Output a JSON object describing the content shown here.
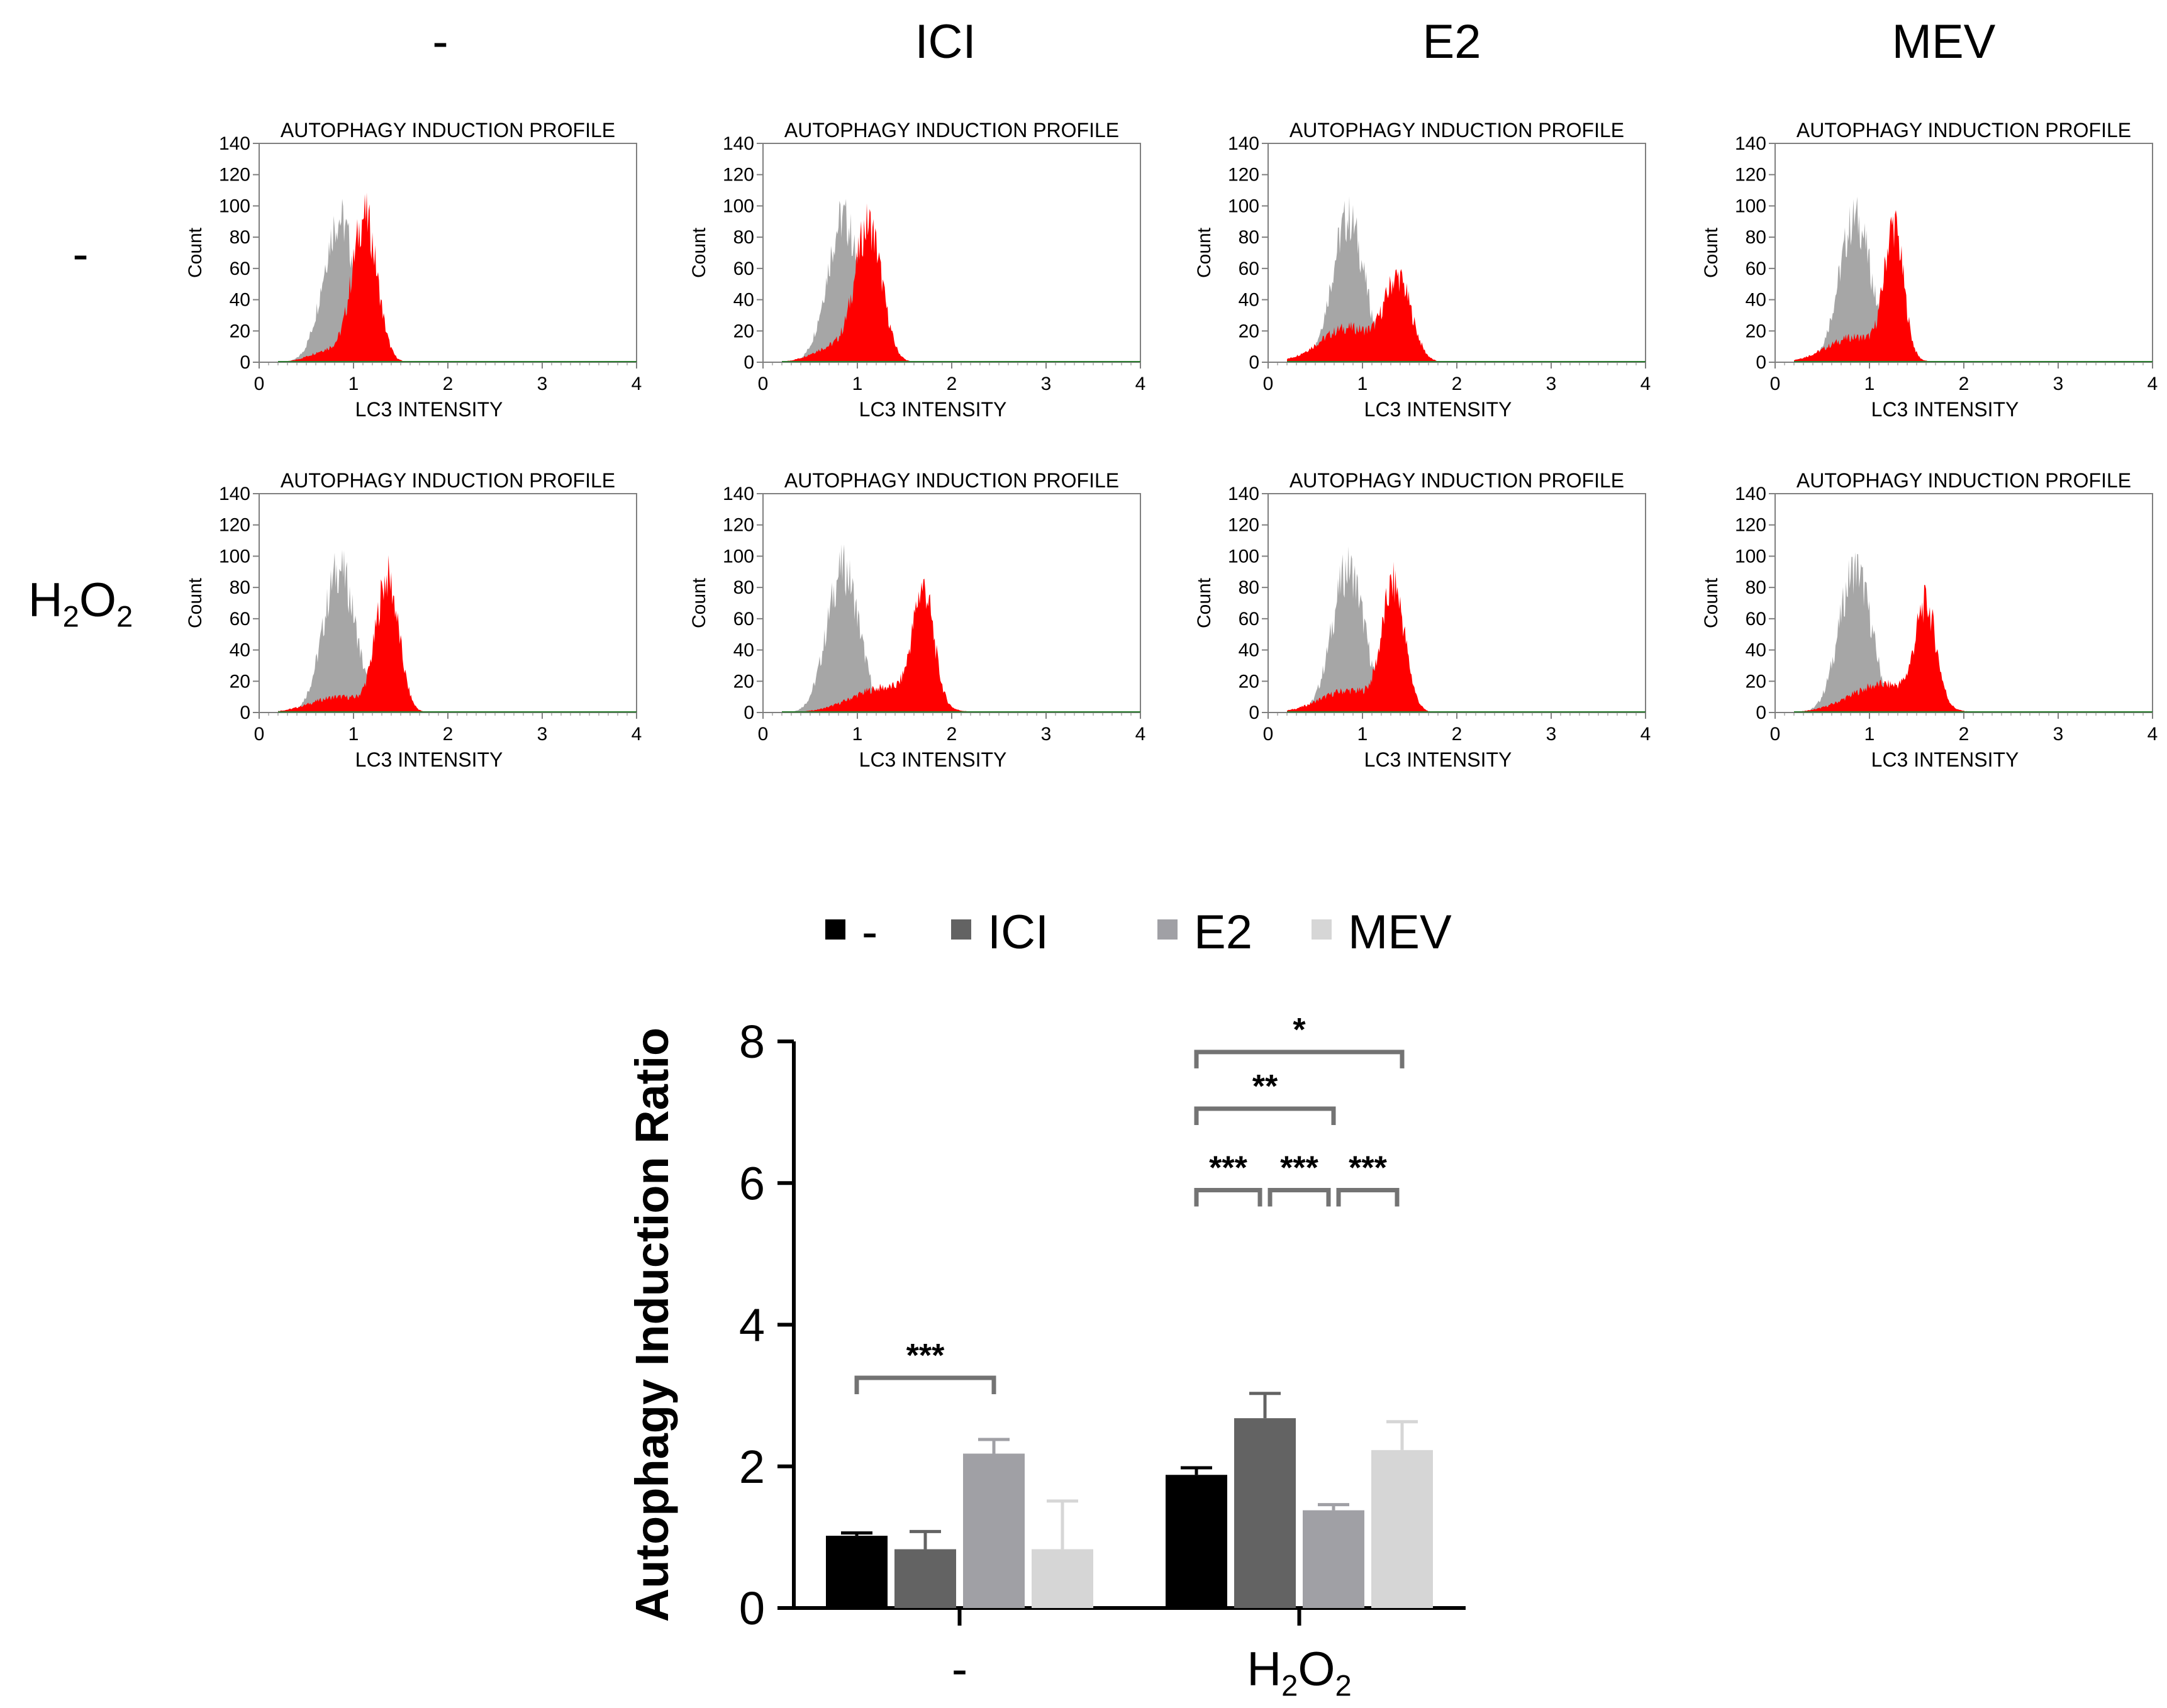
{
  "colors": {
    "red": "#ff0000",
    "gray_hist": "#a6a6a6",
    "baseline": "#2e7d32",
    "axis": "#7f7f7f",
    "bar_none": "#000000",
    "bar_ici": "#636363",
    "bar_e2": "#a0a0a5",
    "bar_mev": "#d6d6d6",
    "bracket": "#737373"
  },
  "panels": {
    "column_headers": [
      "-",
      "ICI",
      "E2",
      "MEV"
    ],
    "row_labels": [
      {
        "main": "-"
      },
      {
        "h1": "H",
        "s1": "2",
        "h2": "O",
        "s2": "2"
      }
    ],
    "panel_title": "AUTOPHAGY INDUCTION PROFILE",
    "xlabel": "LC3 INTENSITY",
    "ylabel": "Count",
    "y_ticks": [
      "0",
      "20",
      "40",
      "60",
      "80",
      "100",
      "120",
      "140"
    ],
    "x_ticks": [
      "0",
      "1",
      "2",
      "3",
      "4"
    ]
  },
  "chart_data": [
    {
      "type": "area",
      "title": "AUTOPHAGY INDUCTION PROFILE",
      "xlabel": "LC3 INTENSITY",
      "ylabel": "Count",
      "xlim": [
        0,
        4
      ],
      "ylim": [
        0,
        140
      ],
      "description_grid": "2 rows (-, H2O2) x 4 columns (-, ICI, E2, MEV)",
      "reference": {
        "name": "control (gray)",
        "components": [
          {
            "mu": 0.85,
            "sd": 0.17,
            "h": 92
          }
        ]
      },
      "panels": [
        {
          "row": "-",
          "col": "-",
          "series": [
            {
              "mu": 1.12,
              "sd": 0.13,
              "h": 92
            },
            {
              "mu": 0.75,
              "sd": 0.2,
              "h": 8
            }
          ]
        },
        {
          "row": "-",
          "col": "ICI",
          "series": [
            {
              "mu": 1.12,
              "sd": 0.14,
              "h": 86
            },
            {
              "mu": 0.75,
              "sd": 0.22,
              "h": 10
            }
          ]
        },
        {
          "row": "-",
          "col": "E2",
          "series": [
            {
              "mu": 1.38,
              "sd": 0.14,
              "h": 50
            },
            {
              "mu": 0.85,
              "sd": 0.3,
              "h": 22
            }
          ]
        },
        {
          "row": "-",
          "col": "MEV",
          "series": [
            {
              "mu": 1.26,
              "sd": 0.1,
              "h": 82
            },
            {
              "mu": 0.85,
              "sd": 0.3,
              "h": 16
            }
          ]
        },
        {
          "row": "H2O2",
          "col": "-",
          "series": [
            {
              "mu": 1.36,
              "sd": 0.12,
              "h": 84
            },
            {
              "mu": 0.85,
              "sd": 0.3,
              "h": 10
            }
          ]
        },
        {
          "row": "H2O2",
          "col": "ICI",
          "series": [
            {
              "mu": 1.7,
              "sd": 0.11,
              "h": 72
            },
            {
              "mu": 1.3,
              "sd": 0.35,
              "h": 16
            }
          ]
        },
        {
          "row": "H2O2",
          "col": "E2",
          "series": [
            {
              "mu": 1.33,
              "sd": 0.12,
              "h": 78
            },
            {
              "mu": 0.85,
              "sd": 0.3,
              "h": 14
            }
          ]
        },
        {
          "row": "H2O2",
          "col": "MEV",
          "series": [
            {
              "mu": 1.6,
              "sd": 0.11,
              "h": 62
            },
            {
              "mu": 1.15,
              "sd": 0.35,
              "h": 18
            }
          ]
        }
      ]
    },
    {
      "type": "bar",
      "ylabel": "Autophagy Induction Ratio",
      "ylim": [
        0,
        8
      ],
      "y_ticks": [
        "0",
        "2",
        "4",
        "6",
        "8"
      ],
      "categories": [
        "-",
        "H2O2"
      ],
      "category_labels": [
        {
          "main": "-"
        },
        {
          "h1": "H",
          "s1": "2",
          "h2": "O",
          "s2": "2"
        }
      ],
      "legend": [
        "-",
        "ICI",
        "E2",
        "MEV"
      ],
      "series": [
        {
          "name": "-",
          "values": [
            1.02,
            1.88
          ],
          "errors": [
            0.04,
            0.1
          ]
        },
        {
          "name": "ICI",
          "values": [
            0.83,
            2.68
          ],
          "errors": [
            0.25,
            0.35
          ]
        },
        {
          "name": "E2",
          "values": [
            2.18,
            1.38
          ],
          "errors": [
            0.2,
            0.08
          ]
        },
        {
          "name": "MEV",
          "values": [
            0.83,
            2.23
          ],
          "errors": [
            0.68,
            0.4
          ]
        }
      ],
      "significance": [
        {
          "group": 0,
          "from": 0,
          "to": 2,
          "y": 3.25,
          "label": "***"
        },
        {
          "group": 1,
          "from": 0,
          "to": 1,
          "y": 5.9,
          "label": "***"
        },
        {
          "group": 1,
          "from": 1,
          "to": 2,
          "y": 5.9,
          "label": "***"
        },
        {
          "group": 1,
          "from": 2,
          "to": 3,
          "y": 5.9,
          "label": "***"
        },
        {
          "group": 1,
          "from": 0,
          "to": 2,
          "y": 7.05,
          "label": "**"
        },
        {
          "group": 1,
          "from": 0,
          "to": 3,
          "y": 7.85,
          "label": "*"
        }
      ]
    }
  ]
}
